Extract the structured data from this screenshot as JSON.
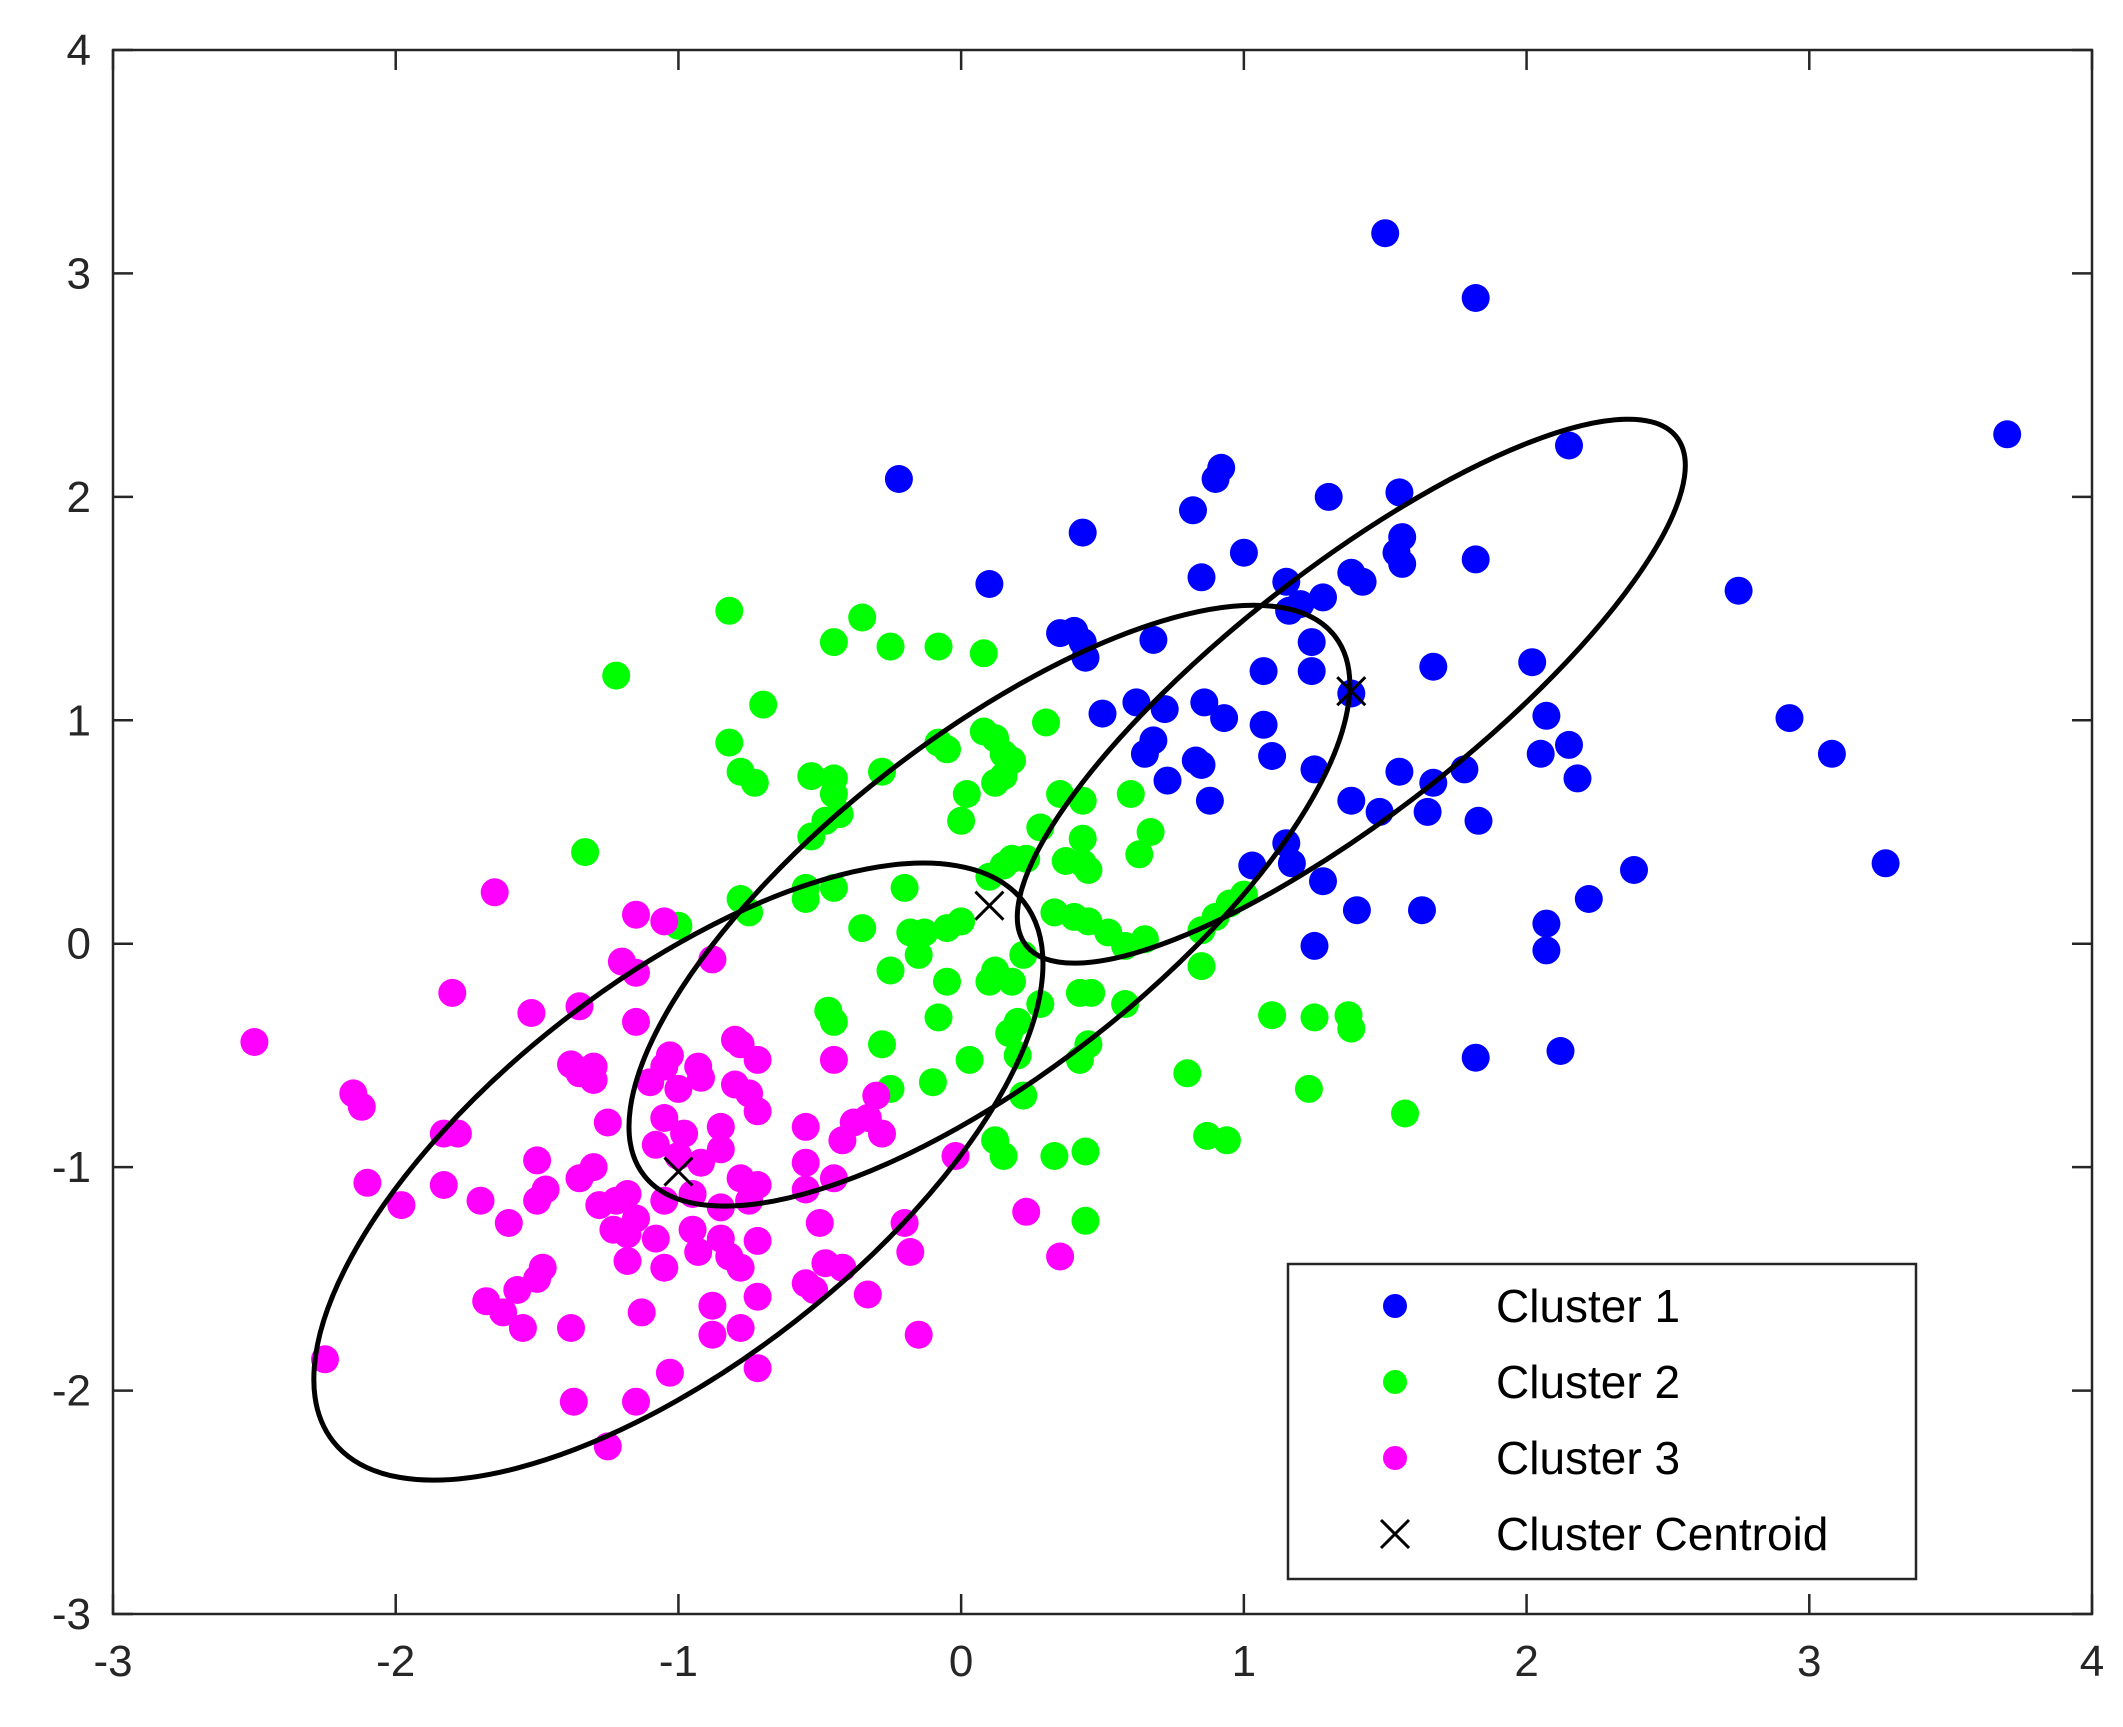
{
  "chart_data": {
    "type": "scatter",
    "title": "",
    "xlabel": "",
    "ylabel": "",
    "xlim": [
      -3,
      4
    ],
    "ylim": [
      -3,
      4
    ],
    "x_ticks": [
      "-3",
      "-2",
      "-1",
      "0",
      "1",
      "2",
      "3",
      "4"
    ],
    "y_ticks": [
      "-3",
      "-2",
      "-1",
      "0",
      "1",
      "2",
      "3",
      "4"
    ],
    "grid": false,
    "legend_position": "bottom-right",
    "series": [
      {
        "name": "Cluster 1",
        "color": "#0000ff",
        "points": [
          [
            1.5,
            3.18
          ],
          [
            1.82,
            2.89
          ],
          [
            2.15,
            2.23
          ],
          [
            3.7,
            2.28
          ],
          [
            -0.22,
            2.08
          ],
          [
            0.92,
            2.13
          ],
          [
            0.9,
            2.08
          ],
          [
            1.55,
            2.02
          ],
          [
            1.3,
            2.0
          ],
          [
            0.82,
            1.94
          ],
          [
            0.43,
            1.84
          ],
          [
            1.56,
            1.82
          ],
          [
            1.54,
            1.75
          ],
          [
            1.0,
            1.75
          ],
          [
            1.82,
            1.72
          ],
          [
            1.56,
            1.7
          ],
          [
            0.85,
            1.64
          ],
          [
            1.38,
            1.66
          ],
          [
            1.42,
            1.62
          ],
          [
            1.15,
            1.62
          ],
          [
            0.1,
            1.61
          ],
          [
            1.28,
            1.55
          ],
          [
            1.2,
            1.52
          ],
          [
            1.16,
            1.49
          ],
          [
            2.75,
            1.58
          ],
          [
            0.35,
            1.39
          ],
          [
            0.4,
            1.4
          ],
          [
            0.43,
            1.35
          ],
          [
            0.44,
            1.28
          ],
          [
            0.68,
            1.36
          ],
          [
            1.24,
            1.35
          ],
          [
            1.24,
            1.22
          ],
          [
            1.07,
            1.22
          ],
          [
            1.67,
            1.24
          ],
          [
            2.02,
            1.26
          ],
          [
            1.38,
            1.12
          ],
          [
            0.5,
            1.03
          ],
          [
            0.62,
            1.08
          ],
          [
            0.72,
            1.05
          ],
          [
            0.86,
            1.08
          ],
          [
            0.93,
            1.01
          ],
          [
            1.07,
            0.98
          ],
          [
            2.07,
            1.02
          ],
          [
            2.93,
            1.01
          ],
          [
            0.68,
            0.91
          ],
          [
            0.65,
            0.85
          ],
          [
            0.83,
            0.82
          ],
          [
            0.85,
            0.8
          ],
          [
            1.1,
            0.84
          ],
          [
            2.05,
            0.85
          ],
          [
            2.15,
            0.89
          ],
          [
            3.08,
            0.85
          ],
          [
            0.73,
            0.73
          ],
          [
            1.25,
            0.78
          ],
          [
            1.55,
            0.77
          ],
          [
            1.67,
            0.72
          ],
          [
            1.78,
            0.78
          ],
          [
            2.18,
            0.74
          ],
          [
            0.88,
            0.64
          ],
          [
            1.38,
            0.64
          ],
          [
            1.48,
            0.59
          ],
          [
            1.65,
            0.59
          ],
          [
            1.83,
            0.55
          ],
          [
            1.15,
            0.45
          ],
          [
            1.17,
            0.36
          ],
          [
            1.03,
            0.35
          ],
          [
            1.28,
            0.28
          ],
          [
            2.38,
            0.33
          ],
          [
            3.27,
            0.36
          ],
          [
            1.4,
            0.15
          ],
          [
            1.63,
            0.15
          ],
          [
            2.22,
            0.2
          ],
          [
            2.07,
            0.09
          ],
          [
            1.25,
            -0.01
          ],
          [
            2.07,
            -0.03
          ],
          [
            1.82,
            -0.51
          ],
          [
            2.12,
            -0.48
          ]
        ]
      },
      {
        "name": "Cluster 2",
        "color": "#00ff00",
        "points": [
          [
            -0.82,
            1.49
          ],
          [
            -0.35,
            1.46
          ],
          [
            -1.22,
            1.2
          ],
          [
            -0.45,
            1.35
          ],
          [
            -0.25,
            1.33
          ],
          [
            -0.08,
            1.33
          ],
          [
            0.08,
            1.3
          ],
          [
            -0.7,
            1.07
          ],
          [
            0.3,
            0.99
          ],
          [
            -0.82,
            0.9
          ],
          [
            -0.08,
            0.9
          ],
          [
            -0.05,
            0.87
          ],
          [
            0.08,
            0.95
          ],
          [
            0.12,
            0.92
          ],
          [
            0.15,
            0.85
          ],
          [
            0.18,
            0.82
          ],
          [
            -0.78,
            0.77
          ],
          [
            -0.73,
            0.72
          ],
          [
            -0.53,
            0.75
          ],
          [
            -0.45,
            0.74
          ],
          [
            -0.45,
            0.67
          ],
          [
            -0.28,
            0.77
          ],
          [
            0.12,
            0.72
          ],
          [
            0.15,
            0.75
          ],
          [
            0.02,
            0.67
          ],
          [
            0.35,
            0.67
          ],
          [
            0.43,
            0.64
          ],
          [
            0.6,
            0.67
          ],
          [
            -0.43,
            0.58
          ],
          [
            -0.48,
            0.55
          ],
          [
            -0.53,
            0.48
          ],
          [
            0.0,
            0.55
          ],
          [
            0.28,
            0.52
          ],
          [
            0.43,
            0.47
          ],
          [
            0.67,
            0.5
          ],
          [
            -1.33,
            0.41
          ],
          [
            -0.55,
            0.25
          ],
          [
            -0.55,
            0.2
          ],
          [
            -0.45,
            0.25
          ],
          [
            -0.2,
            0.25
          ],
          [
            0.1,
            0.3
          ],
          [
            0.15,
            0.35
          ],
          [
            0.18,
            0.38
          ],
          [
            0.23,
            0.38
          ],
          [
            0.37,
            0.37
          ],
          [
            0.43,
            0.36
          ],
          [
            0.45,
            0.33
          ],
          [
            0.63,
            0.4
          ],
          [
            -0.78,
            0.2
          ],
          [
            -0.75,
            0.14
          ],
          [
            -1.0,
            0.08
          ],
          [
            -0.35,
            0.07
          ],
          [
            -0.18,
            0.05
          ],
          [
            -0.13,
            0.05
          ],
          [
            -0.05,
            0.07
          ],
          [
            0.0,
            0.1
          ],
          [
            0.33,
            0.14
          ],
          [
            0.4,
            0.12
          ],
          [
            0.45,
            0.1
          ],
          [
            0.52,
            0.05
          ],
          [
            0.58,
            -0.01
          ],
          [
            0.65,
            0.02
          ],
          [
            0.85,
            0.06
          ],
          [
            0.9,
            0.12
          ],
          [
            0.95,
            0.18
          ],
          [
            1.0,
            0.22
          ],
          [
            -0.25,
            -0.12
          ],
          [
            -0.15,
            -0.05
          ],
          [
            -0.05,
            -0.17
          ],
          [
            0.1,
            -0.17
          ],
          [
            0.12,
            -0.12
          ],
          [
            0.18,
            -0.17
          ],
          [
            0.22,
            -0.05
          ],
          [
            0.28,
            -0.27
          ],
          [
            0.42,
            -0.22
          ],
          [
            0.46,
            -0.22
          ],
          [
            0.58,
            -0.27
          ],
          [
            0.85,
            -0.1
          ],
          [
            -0.47,
            -0.3
          ],
          [
            -0.45,
            -0.35
          ],
          [
            -0.08,
            -0.33
          ],
          [
            0.2,
            -0.35
          ],
          [
            0.17,
            -0.4
          ],
          [
            0.2,
            -0.5
          ],
          [
            0.42,
            -0.52
          ],
          [
            0.45,
            -0.45
          ],
          [
            0.8,
            -0.58
          ],
          [
            1.1,
            -0.32
          ],
          [
            1.25,
            -0.33
          ],
          [
            1.37,
            -0.32
          ],
          [
            1.38,
            -0.38
          ],
          [
            -0.28,
            -0.45
          ],
          [
            -0.25,
            -0.65
          ],
          [
            -0.1,
            -0.62
          ],
          [
            0.03,
            -0.52
          ],
          [
            0.22,
            -0.68
          ],
          [
            1.23,
            -0.65
          ],
          [
            0.87,
            -0.86
          ],
          [
            0.94,
            -0.88
          ],
          [
            0.12,
            -0.88
          ],
          [
            0.15,
            -0.95
          ],
          [
            0.33,
            -0.95
          ],
          [
            0.44,
            -0.93
          ],
          [
            1.57,
            -0.76
          ],
          [
            0.44,
            -1.24
          ]
        ]
      },
      {
        "name": "Cluster 3",
        "color": "#ff00ff",
        "points": [
          [
            -1.65,
            0.23
          ],
          [
            -1.15,
            0.13
          ],
          [
            -1.05,
            0.1
          ],
          [
            -1.2,
            -0.08
          ],
          [
            -1.15,
            -0.13
          ],
          [
            -0.88,
            -0.07
          ],
          [
            -1.8,
            -0.22
          ],
          [
            -1.52,
            -0.31
          ],
          [
            -1.35,
            -0.28
          ],
          [
            -1.15,
            -0.35
          ],
          [
            -2.5,
            -0.44
          ],
          [
            -1.38,
            -0.54
          ],
          [
            -1.35,
            -0.58
          ],
          [
            -1.3,
            -0.55
          ],
          [
            -1.3,
            -0.61
          ],
          [
            -1.1,
            -0.62
          ],
          [
            -1.05,
            -0.55
          ],
          [
            -1.03,
            -0.5
          ],
          [
            -0.93,
            -0.55
          ],
          [
            -0.8,
            -0.43
          ],
          [
            -0.78,
            -0.45
          ],
          [
            -0.72,
            -0.52
          ],
          [
            -0.45,
            -0.52
          ],
          [
            -0.3,
            -0.68
          ],
          [
            -2.15,
            -0.67
          ],
          [
            -2.12,
            -0.73
          ],
          [
            -1.0,
            -0.65
          ],
          [
            -0.92,
            -0.6
          ],
          [
            -0.8,
            -0.63
          ],
          [
            -0.75,
            -0.67
          ],
          [
            -0.72,
            -0.75
          ],
          [
            -1.25,
            -0.8
          ],
          [
            -1.05,
            -0.78
          ],
          [
            -0.98,
            -0.85
          ],
          [
            -0.85,
            -0.82
          ],
          [
            -0.55,
            -0.82
          ],
          [
            -0.42,
            -0.88
          ],
          [
            -0.38,
            -0.8
          ],
          [
            -0.33,
            -0.78
          ],
          [
            -0.28,
            -0.85
          ],
          [
            -1.83,
            -0.85
          ],
          [
            -1.78,
            -0.85
          ],
          [
            -1.5,
            -0.97
          ],
          [
            -1.35,
            -1.05
          ],
          [
            -1.3,
            -1.0
          ],
          [
            -1.08,
            -0.9
          ],
          [
            -1.0,
            -0.95
          ],
          [
            -0.92,
            -0.98
          ],
          [
            -0.85,
            -0.92
          ],
          [
            -0.78,
            -1.05
          ],
          [
            -0.55,
            -0.98
          ],
          [
            -0.45,
            -1.05
          ],
          [
            -0.02,
            -0.95
          ],
          [
            -2.1,
            -1.07
          ],
          [
            -1.83,
            -1.08
          ],
          [
            -1.5,
            -1.15
          ],
          [
            -1.47,
            -1.1
          ],
          [
            -1.28,
            -1.17
          ],
          [
            -1.22,
            -1.15
          ],
          [
            -1.18,
            -1.12
          ],
          [
            -1.05,
            -1.15
          ],
          [
            -0.95,
            -1.12
          ],
          [
            -0.85,
            -1.18
          ],
          [
            -0.75,
            -1.15
          ],
          [
            -0.72,
            -1.08
          ],
          [
            -0.55,
            -1.1
          ],
          [
            -1.98,
            -1.17
          ],
          [
            -1.7,
            -1.15
          ],
          [
            -1.6,
            -1.25
          ],
          [
            -1.23,
            -1.28
          ],
          [
            -1.18,
            -1.3
          ],
          [
            -1.15,
            -1.23
          ],
          [
            -1.08,
            -1.32
          ],
          [
            -0.95,
            -1.28
          ],
          [
            -0.85,
            -1.32
          ],
          [
            -0.72,
            -1.33
          ],
          [
            -0.5,
            -1.25
          ],
          [
            -0.2,
            -1.25
          ],
          [
            -1.18,
            -1.42
          ],
          [
            -1.05,
            -1.45
          ],
          [
            -0.93,
            -1.38
          ],
          [
            -0.82,
            -1.4
          ],
          [
            -0.78,
            -1.45
          ],
          [
            -0.48,
            -1.43
          ],
          [
            -1.48,
            -1.45
          ],
          [
            -1.5,
            -1.5
          ],
          [
            -1.57,
            -1.55
          ],
          [
            -1.68,
            -1.6
          ],
          [
            -1.62,
            -1.65
          ],
          [
            -1.55,
            -1.72
          ],
          [
            -1.38,
            -1.72
          ],
          [
            -1.13,
            -1.65
          ],
          [
            -0.88,
            -1.62
          ],
          [
            -0.42,
            -1.45
          ],
          [
            -0.33,
            -1.57
          ],
          [
            -0.55,
            -1.52
          ],
          [
            -0.52,
            -1.55
          ],
          [
            -0.18,
            -1.38
          ],
          [
            0.23,
            -1.2
          ],
          [
            0.35,
            -1.4
          ],
          [
            -0.88,
            -1.75
          ],
          [
            -0.72,
            -1.58
          ],
          [
            -0.78,
            -1.72
          ],
          [
            -0.15,
            -1.75
          ],
          [
            -2.25,
            -1.86
          ],
          [
            -1.03,
            -1.92
          ],
          [
            -0.72,
            -1.9
          ],
          [
            -1.37,
            -2.05
          ],
          [
            -1.15,
            -2.05
          ],
          [
            -1.25,
            -2.25
          ]
        ]
      }
    ],
    "centroids": {
      "name": "Cluster Centroid",
      "color": "#000000",
      "points": [
        [
          1.38,
          1.13
        ],
        [
          0.1,
          0.17
        ],
        [
          -1.0,
          -1.02
        ]
      ]
    },
    "ellipses": [
      {
        "cx": 1.38,
        "cy": 1.13,
        "a": 1.46,
        "b": 0.55,
        "angle_deg": 38
      },
      {
        "cx": 0.1,
        "cy": 0.17,
        "a": 1.55,
        "b": 0.75,
        "angle_deg": 38
      },
      {
        "cx": -1.0,
        "cy": -1.02,
        "a": 1.55,
        "b": 0.85,
        "angle_deg": 38
      }
    ]
  }
}
